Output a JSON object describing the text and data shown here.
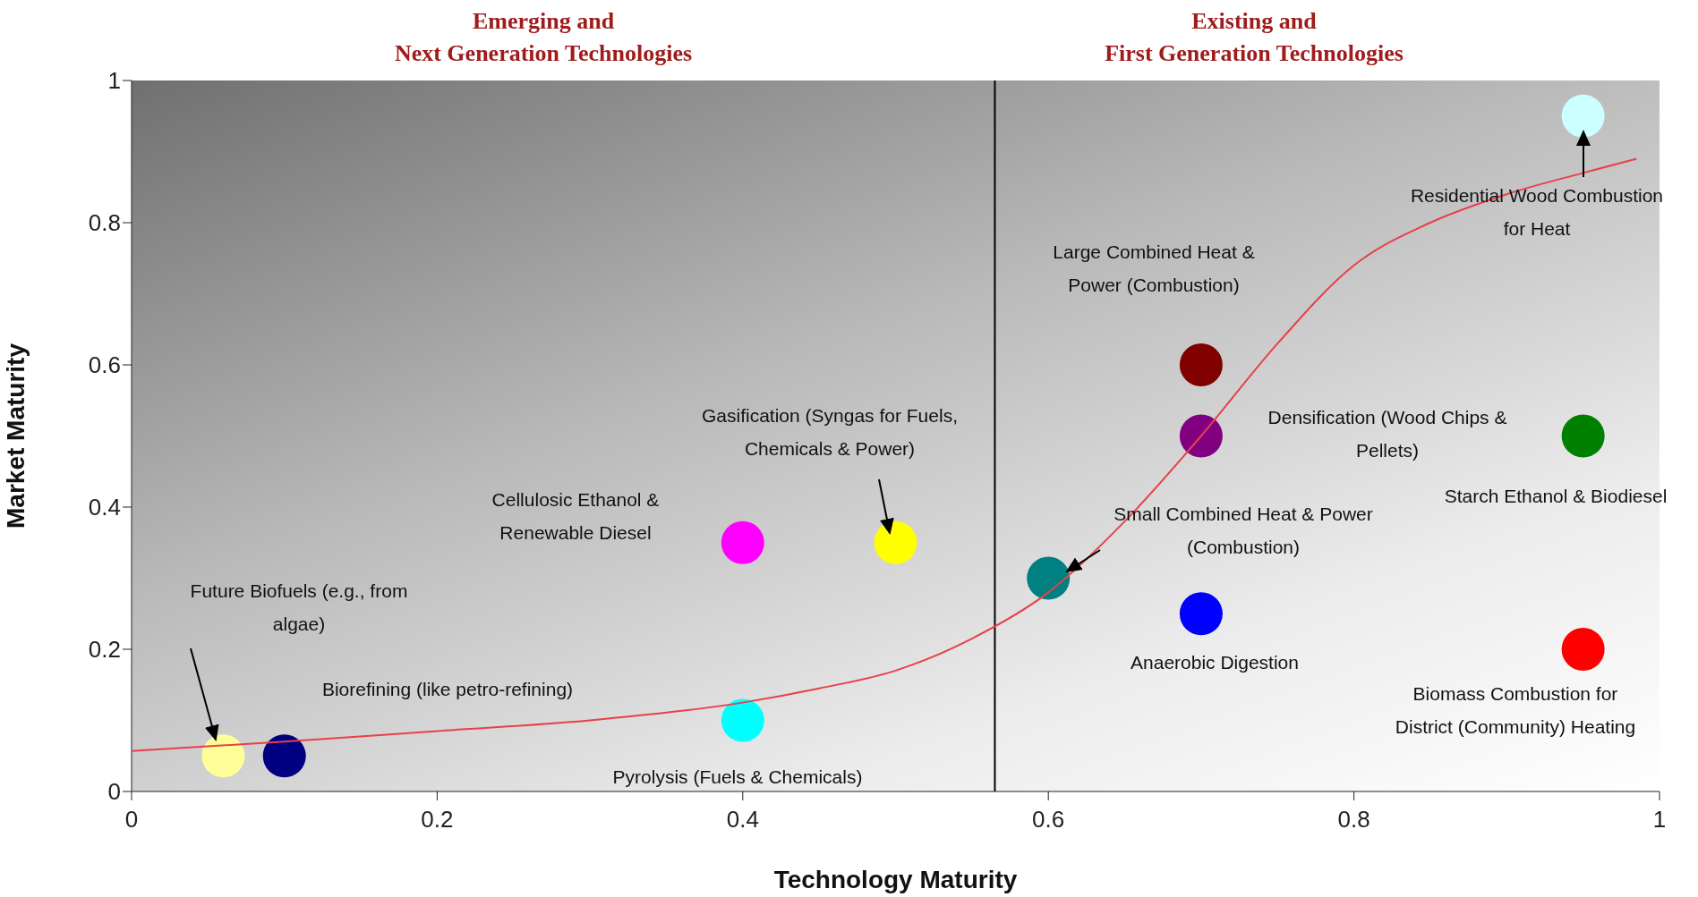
{
  "chart_data": {
    "type": "scatter",
    "xlabel": "Technology Maturity",
    "ylabel": "Market Maturity",
    "xlim": [
      0,
      1
    ],
    "ylim": [
      0,
      1
    ],
    "xticks": [
      0,
      0.2,
      0.4,
      0.6,
      0.8,
      1
    ],
    "yticks": [
      0,
      0.2,
      0.4,
      0.6,
      0.8,
      1
    ],
    "marker": "circle",
    "series": [
      {
        "type": "scatter",
        "x": [
          0.06,
          0.1,
          0.4,
          0.4,
          0.5,
          0.6,
          0.7,
          0.7,
          0.7,
          0.95,
          0.95,
          0.95
        ],
        "values": [
          0.05,
          0.05,
          0.35,
          0.1,
          0.35,
          0.3,
          0.6,
          0.5,
          0.25,
          0.95,
          0.5,
          0.2
        ],
        "colors": [
          "#ffff99",
          "#000080",
          "#ff00ff",
          "#00ffff",
          "#ffff00",
          "#008080",
          "#800000",
          "#800080",
          "#0000ff",
          "#ccffff",
          "#008000",
          "#ff0000"
        ]
      },
      {
        "type": "line",
        "x": [
          0,
          0.1,
          0.2,
          0.3,
          0.4,
          0.45,
          0.5,
          0.55,
          0.6,
          0.65,
          0.7,
          0.75,
          0.8,
          0.85,
          0.9,
          0.95,
          0.985
        ],
        "values": [
          0.057,
          0.07,
          0.085,
          0.1,
          0.125,
          0.145,
          0.17,
          0.215,
          0.28,
          0.38,
          0.5,
          0.63,
          0.74,
          0.8,
          0.84,
          0.87,
          0.89
        ],
        "color": "#e8404a",
        "marker": "none"
      }
    ],
    "ref_lines": [
      {
        "axis": "x",
        "value": 0.565,
        "color": "#000000"
      }
    ],
    "annotations": [
      "Emerging and Next Generation Technologies",
      "Existing and First Generation Technologies",
      "Future Biofuels (e.g., from algae)",
      "Biorefining (like petro-refining)",
      "Cellulosic Ethanol & Renewable Diesel",
      "Pyrolysis (Fuels & Chemicals)",
      "Gasification (Syngas for Fuels, Chemicals & Power)",
      "Small Combined Heat & Power (Combustion)",
      "Large Combined Heat & Power (Combustion)",
      "Densification (Wood Chips & Pellets)",
      "Anaerobic Digestion",
      "Residential Wood Combustion for Heat",
      "Starch Ethanol & Biodiesel",
      "Biomass Combustion for District (Community) Heating"
    ]
  }
}
